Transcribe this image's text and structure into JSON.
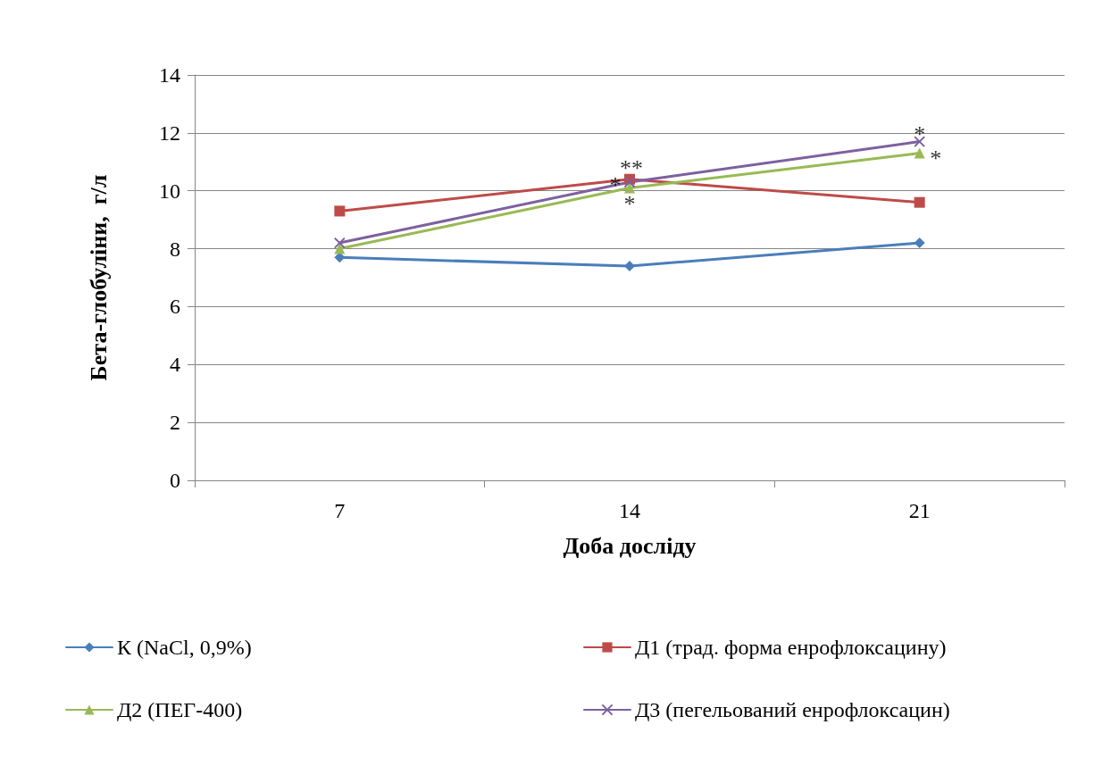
{
  "chart_data": {
    "type": "line",
    "xlabel": "Доба досліду",
    "ylabel": "Бета-глобуліни,  г/л",
    "categories": [
      "7",
      "14",
      "21"
    ],
    "series": [
      {
        "name": "К (NaCl, 0,9%)",
        "color": "#4a7ebb",
        "marker": "diamond",
        "values": [
          7.7,
          7.4,
          8.2
        ]
      },
      {
        "name": "Д1 (трад. форма енрофлоксацину)",
        "color": "#be4b48",
        "marker": "square",
        "values": [
          9.3,
          10.4,
          9.6
        ]
      },
      {
        "name": "Д2 (ПЕГ-400)",
        "color": "#98b954",
        "marker": "triangle",
        "values": [
          8.0,
          10.1,
          11.3
        ]
      },
      {
        "name": "Д3 (пегельований енрофлоксацин)",
        "color": "#7d60a0",
        "marker": "cross",
        "values": [
          8.2,
          10.3,
          11.7
        ]
      }
    ],
    "annotations": [
      {
        "text": "**",
        "x": "14",
        "y": 10.4
      },
      {
        "text": "*",
        "x": "14",
        "y": 10.3
      },
      {
        "text": "*",
        "x": "14",
        "y": 10.1
      },
      {
        "text": "*",
        "x": "21",
        "y": 11.7
      },
      {
        "text": "*",
        "x": "21",
        "y": 11.3
      }
    ],
    "ylim": [
      0,
      14
    ],
    "yticks": [
      0,
      2,
      4,
      6,
      8,
      10,
      12,
      14
    ],
    "grid": "y",
    "legend": "bottom",
    "line_style": "solid"
  }
}
